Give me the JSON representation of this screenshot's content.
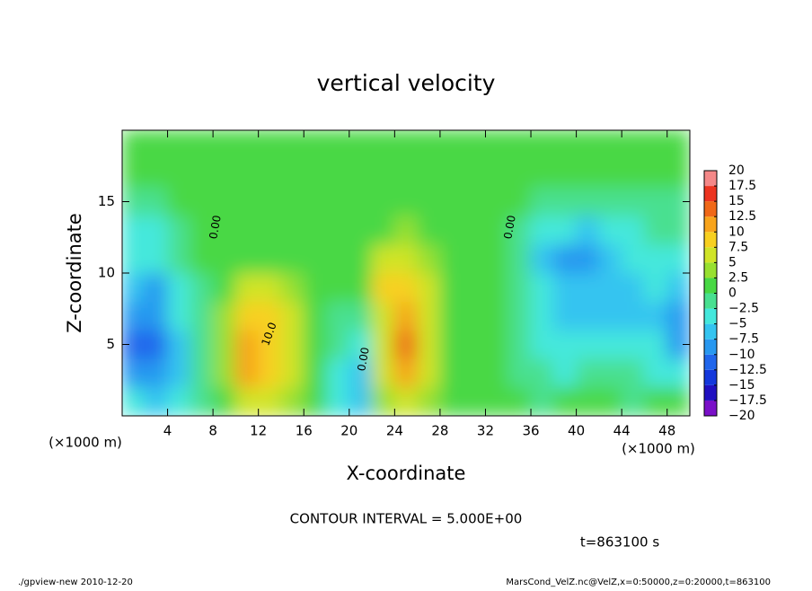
{
  "chart_data": {
    "type": "heatmap",
    "title": "vertical velocity",
    "x_label": "X-coordinate",
    "y_label": "Z-coordinate",
    "x_unit": "(×1000 m)",
    "contour_interval": "CONTOUR INTERVAL = 5.000E+00",
    "time_label": "t=863100 s",
    "footer_left": "./gpview-new  2010-12-20",
    "footer_right": "MarsCond_VelZ.nc@VelZ,x=0:50000,z=0:20000,t=863100",
    "contour_labels": [
      "0.00",
      "0.00",
      "0.00",
      "10.0"
    ],
    "xlim": [
      0,
      50
    ],
    "xticks": [
      4,
      8,
      12,
      16,
      20,
      24,
      28,
      32,
      36,
      40,
      44,
      48
    ],
    "ylim": [
      0,
      20
    ],
    "yticks": [
      5,
      10,
      15
    ],
    "x": [
      1,
      3,
      5,
      7,
      9,
      11,
      13,
      15,
      17,
      19,
      21,
      23,
      25,
      27,
      29,
      31,
      33,
      35,
      37,
      39,
      41,
      43,
      45,
      47,
      49
    ],
    "z": [
      1,
      3,
      5,
      7,
      9,
      11,
      13,
      15,
      17,
      19
    ],
    "values": [
      [
        -4,
        -6,
        -4,
        -1,
        1,
        5,
        6,
        3,
        0,
        -3,
        -7,
        3,
        6,
        4,
        1,
        0,
        0,
        0,
        -1,
        0,
        2,
        0,
        -1,
        0,
        1
      ],
      [
        -8,
        -10,
        -6,
        -1,
        3,
        10,
        9,
        5,
        0,
        -3,
        -6,
        5,
        11,
        6,
        1,
        0,
        0,
        -1,
        -2,
        -3,
        -2,
        -2,
        -2,
        -3,
        -3
      ],
      [
        -11,
        -11,
        -6,
        -1,
        4,
        11,
        9,
        6,
        1,
        -2,
        -3,
        6,
        13,
        7,
        1,
        0,
        0,
        -1,
        -4,
        -5,
        -4,
        -4,
        -4,
        -5,
        -8
      ],
      [
        -10,
        -9,
        -5,
        -1,
        3,
        8,
        8,
        5,
        1,
        -1,
        -1,
        7,
        10,
        6,
        1,
        0,
        0,
        -2,
        -5,
        -6,
        -6,
        -6,
        -6,
        -6,
        -9
      ],
      [
        -7,
        -8,
        -4,
        -1,
        2,
        5,
        5,
        3,
        1,
        0,
        0,
        8,
        9,
        5,
        1,
        0,
        0,
        -2,
        -5,
        -7,
        -7,
        -7,
        -6,
        -5,
        -6
      ],
      [
        -5,
        -5,
        -2,
        0,
        1,
        2,
        2,
        1,
        1,
        1,
        1,
        5,
        6,
        3,
        1,
        0,
        0,
        -2,
        -6,
        -8,
        -8,
        -7,
        -5,
        -4,
        -4
      ],
      [
        -3,
        -3,
        -1,
        0,
        0,
        1,
        1,
        1,
        1,
        1,
        1,
        2,
        3,
        2,
        1,
        0,
        0,
        -1,
        -4,
        -5,
        -6,
        -5,
        -3,
        -2,
        -2
      ],
      [
        -1,
        -1,
        0,
        0,
        0,
        0,
        1,
        1,
        1,
        1,
        1,
        1,
        1,
        1,
        1,
        0,
        0,
        0,
        -1,
        -2,
        -2,
        -2,
        -1,
        -1,
        -1
      ],
      [
        0,
        0,
        0,
        0,
        0,
        0,
        0,
        1,
        1,
        1,
        1,
        1,
        1,
        1,
        1,
        0,
        0,
        0,
        0,
        0,
        0,
        0,
        0,
        0,
        0
      ],
      [
        0,
        0,
        0,
        0,
        0,
        0,
        0,
        0,
        0,
        0,
        0,
        0,
        0,
        0,
        0,
        0,
        0,
        0,
        0,
        0,
        0,
        0,
        0,
        0,
        0
      ]
    ],
    "colorbar": {
      "ticks": [
        {
          "value": -20,
          "label": "−20"
        },
        {
          "value": -17.5,
          "label": "−17.5"
        },
        {
          "value": -15,
          "label": "−15"
        },
        {
          "value": -12.5,
          "label": "−12.5"
        },
        {
          "value": -10,
          "label": "−10"
        },
        {
          "value": -7.5,
          "label": "−7.5"
        },
        {
          "value": -5,
          "label": "−5"
        },
        {
          "value": -2.5,
          "label": "−2.5"
        },
        0,
        2.5,
        5,
        7.5,
        10,
        12.5,
        15,
        17.5,
        20
      ],
      "colors": [
        "#7a10c8",
        "#2010c0",
        "#1438dc",
        "#2066ec",
        "#2898f0",
        "#34c4f0",
        "#44e8dc",
        "#48e090",
        "#48d844",
        "#98e030",
        "#d0e428",
        "#f8d020",
        "#f8a41c",
        "#f06818",
        "#ec3420",
        "#f48888"
      ]
    }
  }
}
